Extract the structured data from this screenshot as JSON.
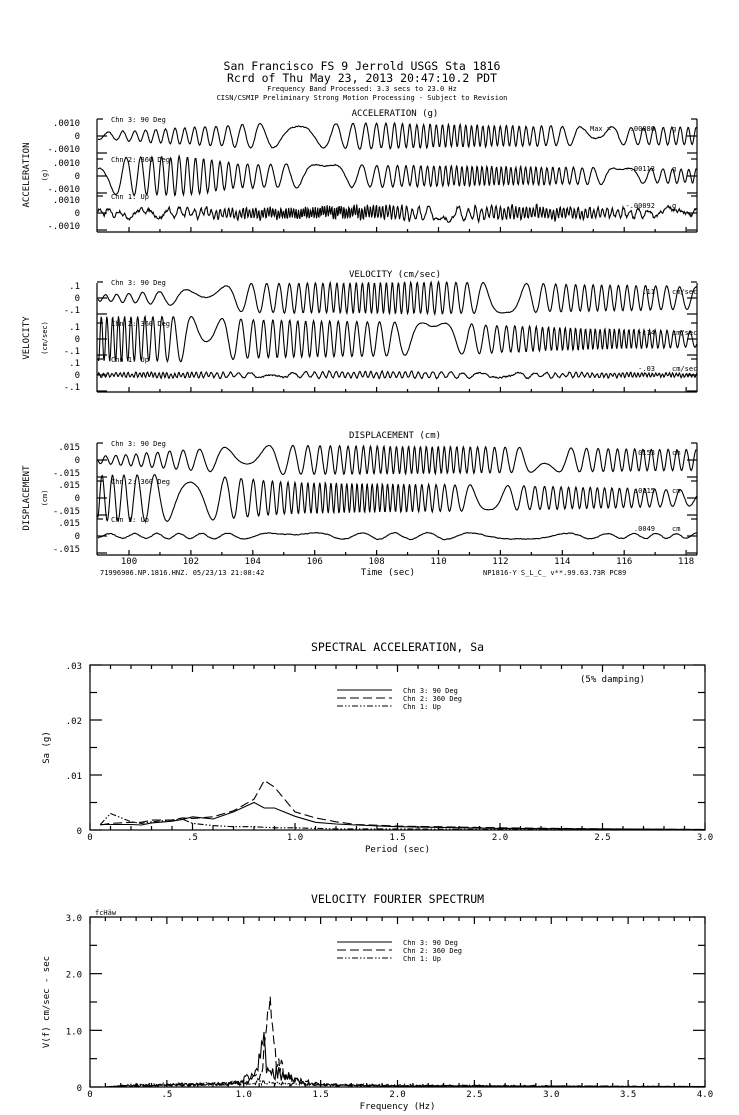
{
  "header": {
    "line1": "San Francisco FS 9 Jerrold    USGS Sta 1816",
    "line2": "Rcrd of Thu May 23, 2013 20:47:10.2 PDT",
    "line3": "Frequency Band Processed: 3.3 secs to 23.0 Hz",
    "line4": "CISN/CSMIP Preliminary Strong Motion Processing - Subject to Revision"
  },
  "chart_data": [
    {
      "type": "line",
      "title": "ACCELERATION (g)",
      "ylabel": "ACCELERATION",
      "yunit": "(g)",
      "xlabel": "Time (sec)",
      "xlim": [
        99,
        118.4
      ],
      "x_ticks": [
        "100",
        "102",
        "104",
        "106",
        "108",
        "110",
        "112",
        "114",
        "116",
        "118"
      ],
      "channels": [
        {
          "name": "Chn 3: 90 Deg",
          "y_ticks": [
            ".0010",
            "0",
            "-.0010"
          ],
          "ylim": [
            -0.001,
            0.001
          ],
          "peak_label": "Max =",
          "peak": ".00086",
          "unit": "g",
          "dominant_period": 1.12,
          "noise": 3e-05,
          "envelope": [
            [
              99,
              0.0002
            ],
            [
              101,
              0.0004
            ],
            [
              104,
              0.0007
            ],
            [
              108,
              0.00075
            ],
            [
              112,
              0.0006
            ],
            [
              118.4,
              0.0005
            ]
          ]
        },
        {
          "name": "Chn 2: 360 Deg",
          "y_ticks": [
            ".0010",
            "0",
            "-.0010"
          ],
          "ylim": [
            -0.001,
            0.001
          ],
          "peak_label": "",
          "peak": "-.00113",
          "unit": "g",
          "dominant_period": 0.95,
          "noise": 3e-05,
          "envelope": [
            [
              99,
              0.0011
            ],
            [
              102,
              0.00113
            ],
            [
              103.5,
              0.0007
            ],
            [
              110,
              0.0006
            ],
            [
              118.4,
              0.0004
            ]
          ]
        },
        {
          "name": "Chn 1: Up",
          "y_ticks": [
            ".0010",
            "0",
            "-.0010"
          ],
          "ylim": [
            -0.001,
            0.001
          ],
          "peak_label": "",
          "peak": "-.00092",
          "unit": "g",
          "dominant_period": 0.45,
          "noise": 0.00012,
          "envelope": [
            [
              99,
              0.0002
            ],
            [
              105,
              0.0003
            ],
            [
              110,
              0.0004
            ],
            [
              118.4,
              0.0002
            ]
          ]
        }
      ]
    },
    {
      "type": "line",
      "title": "VELOCITY (cm/sec)",
      "ylabel": "VELOCITY",
      "yunit": "(cm/sec)",
      "xlim": [
        99,
        118.4
      ],
      "channels": [
        {
          "name": "Chn 3: 90 Deg",
          "y_ticks": [
            ".1",
            "0",
            "-.1"
          ],
          "ylim": [
            -0.1,
            0.1
          ],
          "peak": ".11",
          "unit": "cm/sec",
          "dominant_period": 1.15,
          "noise": 0.002,
          "envelope": [
            [
              99,
              0.02
            ],
            [
              101,
              0.04
            ],
            [
              104,
              0.09
            ],
            [
              110,
              0.1
            ],
            [
              118.4,
              0.07
            ]
          ]
        },
        {
          "name": "Chn 2: 360 Deg",
          "y_ticks": [
            ".1",
            "0",
            "-.1"
          ],
          "ylim": [
            -0.1,
            0.1
          ],
          "peak": "-.14",
          "unit": "cm/sec",
          "dominant_period": 0.97,
          "noise": 0.002,
          "envelope": [
            [
              99,
              0.14
            ],
            [
              102,
              0.14
            ],
            [
              104,
              0.12
            ],
            [
              110,
              0.1
            ],
            [
              114,
              0.07
            ],
            [
              118.4,
              0.05
            ]
          ]
        },
        {
          "name": "Chn 1: Up",
          "y_ticks": [
            ".1",
            "0",
            "-.1"
          ],
          "ylim": [
            -0.1,
            0.1
          ],
          "peak": "-.03",
          "unit": "cm/sec",
          "dominant_period": 0.7,
          "noise": 0.005,
          "envelope": [
            [
              99,
              0.012
            ],
            [
              108,
              0.02
            ],
            [
              118.4,
              0.01
            ]
          ]
        }
      ]
    },
    {
      "type": "line",
      "title": "DISPLACEMENT (cm)",
      "ylabel": "DISPLACEMENT",
      "yunit": "(cm)",
      "xlim": [
        99,
        118.4
      ],
      "channels": [
        {
          "name": "Chn 3: 90 Deg",
          "y_ticks": [
            ".015",
            "0",
            "-.015"
          ],
          "ylim": [
            -0.015,
            0.015
          ],
          "peak": ".0153",
          "unit": "cm",
          "dominant_period": 1.15,
          "noise": 0.0002,
          "envelope": [
            [
              99,
              0.003
            ],
            [
              101,
              0.007
            ],
            [
              104,
              0.013
            ],
            [
              110,
              0.012
            ],
            [
              118.4,
              0.009
            ]
          ]
        },
        {
          "name": "Chn 2: 360 Deg",
          "y_ticks": [
            ".015",
            "0",
            "-.015"
          ],
          "ylim": [
            -0.015,
            0.015
          ],
          "peak": ".0215",
          "unit": "cm",
          "dominant_period": 0.97,
          "noise": 0.0002,
          "envelope": [
            [
              99,
              0.02
            ],
            [
              102,
              0.021
            ],
            [
              105,
              0.014
            ],
            [
              112,
              0.011
            ],
            [
              118.4,
              0.007
            ]
          ]
        },
        {
          "name": "Chn 1: Up",
          "y_ticks": [
            ".015",
            "0",
            "-.015"
          ],
          "ylim": [
            -0.015,
            0.015
          ],
          "peak": ".0049",
          "unit": "cm",
          "dominant_period": 4.0,
          "noise": 0.0003,
          "envelope": [
            [
              99,
              0.002
            ],
            [
              110,
              0.003
            ],
            [
              118.4,
              0.002
            ]
          ]
        }
      ],
      "footer_left": "71996906.NP.1816.HNZ. 05/23/13 21:08:42",
      "footer_right": "NP1816-Y  S_L_C_  v**.99.63.73R PC89"
    },
    {
      "type": "line",
      "title": "SPECTRAL ACCELERATION, Sa",
      "xlabel": "Period (sec)",
      "ylabel": "Sa  (g)",
      "annotation": "(5% damping)",
      "xlim": [
        0,
        3.0
      ],
      "ylim": [
        0,
        0.03
      ],
      "x_ticks": [
        "0",
        ".5",
        "1.0",
        "1.5",
        "2.0",
        "2.5",
        "3.0"
      ],
      "y_ticks": [
        ".03",
        ".02",
        ".01",
        "0"
      ],
      "legend_position": "top-center",
      "x": [
        0.05,
        0.1,
        0.2,
        0.25,
        0.3,
        0.4,
        0.45,
        0.5,
        0.6,
        0.7,
        0.8,
        0.85,
        0.9,
        1.0,
        1.1,
        1.2,
        1.3,
        1.5,
        2.0,
        2.5,
        3.0
      ],
      "series": [
        {
          "name": "Chn 3: 90 Deg",
          "style": "solid",
          "values": [
            0.001,
            0.001,
            0.001,
            0.0009,
            0.0013,
            0.0016,
            0.0019,
            0.0024,
            0.002,
            0.0033,
            0.005,
            0.004,
            0.004,
            0.0025,
            0.0014,
            0.0011,
            0.0009,
            0.0006,
            0.0003,
            0.0002,
            0.0001
          ]
        },
        {
          "name": "Chn 2: 360 Deg",
          "style": "dashed",
          "values": [
            0.0009,
            0.0012,
            0.0014,
            0.0014,
            0.0018,
            0.0018,
            0.0022,
            0.0021,
            0.0024,
            0.0035,
            0.0056,
            0.009,
            0.0078,
            0.0033,
            0.0022,
            0.0015,
            0.001,
            0.0007,
            0.0004,
            0.0002,
            0.0001
          ]
        },
        {
          "name": "Chn 1: Up",
          "style": "dash-dot",
          "values": [
            0.001,
            0.003,
            0.0015,
            0.0012,
            0.0015,
            0.0018,
            0.002,
            0.0012,
            0.0008,
            0.0006,
            0.0006,
            0.0005,
            0.0004,
            0.0004,
            0.0003,
            0.0002,
            0.0002,
            0.0002,
            0.0001,
            0.0001,
            0.0001
          ]
        }
      ]
    },
    {
      "type": "line",
      "title": "VELOCITY FOURIER SPECTRUM",
      "corner_label": "fcHäw",
      "xlabel": "Frequency (Hz)",
      "ylabel": "V(f)   cm/sec - sec",
      "xlim": [
        0,
        4.0
      ],
      "ylim": [
        0,
        3.0
      ],
      "x_ticks": [
        "0",
        ".5",
        "1.0",
        "1.5",
        "2.0",
        "2.5",
        "3.0",
        "3.5",
        "4.0"
      ],
      "y_ticks": [
        "3.0",
        "2.0",
        "1.0",
        "0"
      ],
      "legend_position": "top-center",
      "series": [
        {
          "name": "Chn 3: 90 Deg",
          "style": "solid",
          "envelope": [
            [
              0.1,
              0
            ],
            [
              0.2,
              0.03
            ],
            [
              0.5,
              0.05
            ],
            [
              0.9,
              0.08
            ],
            [
              1.0,
              0.2
            ],
            [
              1.08,
              0.3
            ],
            [
              1.13,
              1.05
            ],
            [
              1.16,
              0.4
            ],
            [
              1.2,
              0.4
            ],
            [
              1.3,
              0.25
            ],
            [
              1.4,
              0.08
            ],
            [
              1.6,
              0.05
            ],
            [
              2.0,
              0.03
            ],
            [
              4.0,
              0.01
            ]
          ]
        },
        {
          "name": "Chn 2: 360 Deg",
          "style": "dashed",
          "envelope": [
            [
              0.1,
              0
            ],
            [
              0.2,
              0.03
            ],
            [
              0.5,
              0.05
            ],
            [
              1.0,
              0.1
            ],
            [
              1.1,
              0.3
            ],
            [
              1.15,
              1.2
            ],
            [
              1.17,
              1.93
            ],
            [
              1.2,
              0.9
            ],
            [
              1.25,
              0.45
            ],
            [
              1.3,
              0.2
            ],
            [
              1.5,
              0.07
            ],
            [
              2.0,
              0.03
            ],
            [
              4.0,
              0.01
            ]
          ]
        },
        {
          "name": "Chn 1: Up",
          "style": "dash-dot",
          "envelope": [
            [
              0.1,
              0
            ],
            [
              0.3,
              0.06
            ],
            [
              0.8,
              0.08
            ],
            [
              1.0,
              0.12
            ],
            [
              1.2,
              0.1
            ],
            [
              1.5,
              0.06
            ],
            [
              2.4,
              0.04
            ],
            [
              4.0,
              0.01
            ]
          ]
        }
      ]
    }
  ]
}
